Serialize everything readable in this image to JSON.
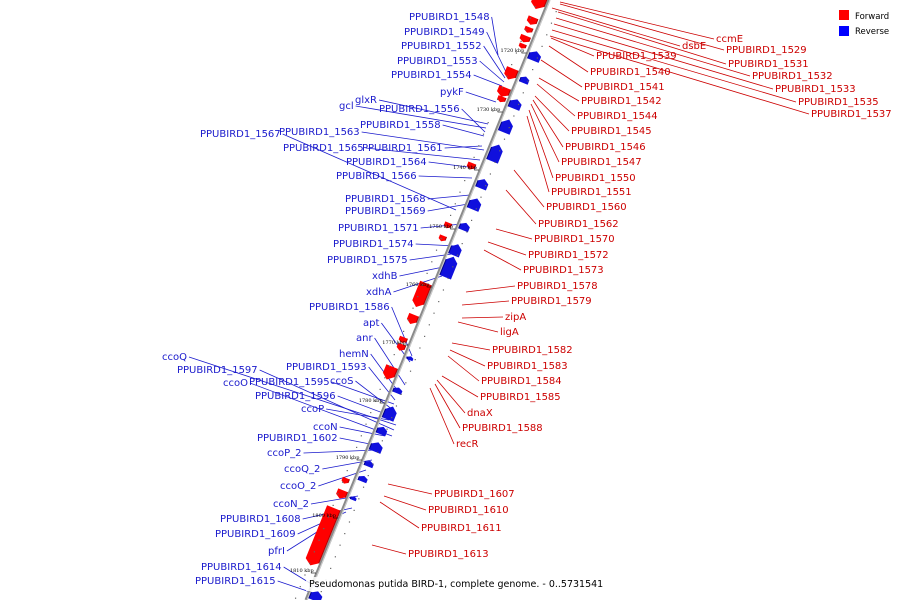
{
  "caption": "Pseudomonas putida BIRD-1, complete genome. - 0..5731541",
  "legend": {
    "forward_label": "Forward",
    "reverse_label": "Reverse",
    "forward_color": "#ff0000",
    "reverse_color": "#0000ff"
  },
  "colors": {
    "backbone": "#8a8a8a",
    "forward": "#ff0000",
    "reverse": "#1010dd"
  },
  "ticks": [
    "1720 kbp",
    "1730 kbp",
    "1740 kbp",
    "1750 kbp",
    "1760 kbp",
    "1770 kbp",
    "1780 kbp",
    "1790 kbp",
    "1800 kbp",
    "1810 kbp"
  ],
  "forward_genes": [
    "ccmE",
    "dsbE",
    "PPUBIRD1_1529",
    "PPUBIRD1_1531",
    "PPUBIRD1_1532",
    "PPUBIRD1_1533",
    "PPUBIRD1_1535",
    "PPUBIRD1_1537",
    "PPUBIRD1_1539",
    "PPUBIRD1_1540",
    "PPUBIRD1_1541",
    "PPUBIRD1_1542",
    "PPUBIRD1_1544",
    "PPUBIRD1_1545",
    "PPUBIRD1_1546",
    "PPUBIRD1_1547",
    "PPUBIRD1_1550",
    "PPUBIRD1_1551",
    "PPUBIRD1_1560",
    "PPUBIRD1_1562",
    "PPUBIRD1_1570",
    "PPUBIRD1_1572",
    "PPUBIRD1_1573",
    "PPUBIRD1_1578",
    "PPUBIRD1_1579",
    "zipA",
    "ligA",
    "PPUBIRD1_1582",
    "PPUBIRD1_1583",
    "PPUBIRD1_1584",
    "PPUBIRD1_1585",
    "dnaX",
    "PPUBIRD1_1588",
    "recR",
    "PPUBIRD1_1607",
    "PPUBIRD1_1610",
    "PPUBIRD1_1611",
    "PPUBIRD1_1613"
  ],
  "reverse_genes": [
    "PPUBIRD1_1548",
    "PPUBIRD1_1549",
    "PPUBIRD1_1552",
    "PPUBIRD1_1553",
    "PPUBIRD1_1554",
    "pykF",
    "glxR",
    "gcl",
    "PPUBIRD1_1556",
    "PPUBIRD1_1558",
    "PPUBIRD1_1567",
    "PPUBIRD1_1563",
    "PPUBIRD1_1565",
    "PPUBIRD1_1561",
    "PPUBIRD1_1564",
    "PPUBIRD1_1566",
    "PPUBIRD1_1568",
    "PPUBIRD1_1569",
    "PPUBIRD1_1571",
    "PPUBIRD1_1574",
    "PPUBIRD1_1575",
    "xdhB",
    "xdhA",
    "PPUBIRD1_1586",
    "apt",
    "anr",
    "hemN",
    "ccoQ",
    "PPUBIRD1_1597",
    "PPUBIRD1_1593",
    "ccoO",
    "PPUBIRD1_1595",
    "ccoS",
    "PPUBIRD1_1596",
    "ccoP",
    "ccoN",
    "PPUBIRD1_1602",
    "ccoP_2",
    "ccoQ_2",
    "ccoO_2",
    "ccoN_2",
    "PPUBIRD1_1608",
    "PPUBIRD1_1609",
    "pfrI",
    "PPUBIRD1_1614",
    "PPUBIRD1_1615"
  ]
}
